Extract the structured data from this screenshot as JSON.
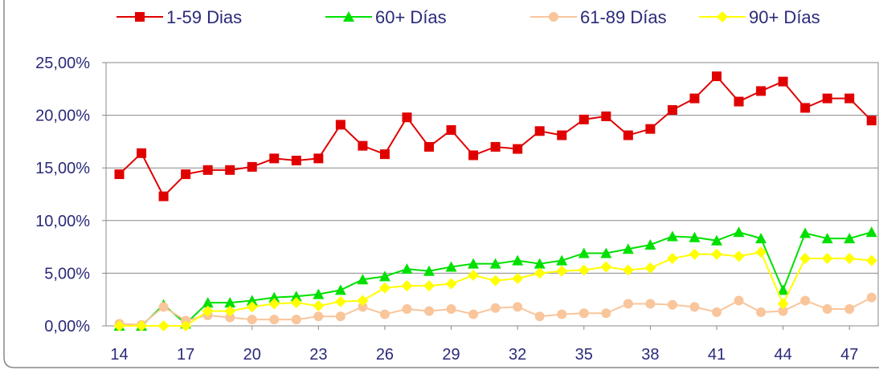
{
  "chart_data": {
    "type": "line",
    "x": [
      14,
      15,
      16,
      17,
      18,
      19,
      20,
      21,
      22,
      23,
      24,
      25,
      26,
      27,
      28,
      29,
      30,
      31,
      32,
      33,
      34,
      35,
      36,
      37,
      38,
      39,
      40,
      41,
      42,
      43,
      44,
      45,
      46,
      47,
      48
    ],
    "xlim": [
      13.4,
      48.3
    ],
    "xticks": [
      14,
      17,
      20,
      23,
      26,
      29,
      32,
      35,
      38,
      41,
      44,
      47
    ],
    "ylim": [
      0,
      25
    ],
    "yticks": [
      {
        "value": 0,
        "label": "0,00%"
      },
      {
        "value": 5,
        "label": "5,00%"
      },
      {
        "value": 10,
        "label": "10,00%"
      },
      {
        "value": 15,
        "label": "15,00%"
      },
      {
        "value": 20,
        "label": "20,00%"
      },
      {
        "value": 25,
        "label": "25,00%"
      }
    ],
    "grid": true,
    "legend": "top",
    "series": [
      {
        "name": "1-59 Dias",
        "color": "#e00000",
        "marker": "square",
        "values": [
          14.4,
          16.4,
          12.3,
          14.4,
          14.8,
          14.8,
          15.1,
          15.9,
          15.7,
          15.9,
          19.1,
          17.1,
          16.3,
          19.8,
          17.0,
          18.6,
          16.2,
          17.0,
          16.8,
          18.5,
          18.1,
          19.6,
          19.9,
          18.1,
          18.7,
          20.5,
          21.6,
          23.7,
          21.3,
          22.3,
          23.2,
          20.7,
          21.6,
          21.6,
          19.5
        ]
      },
      {
        "name": "60+ Días",
        "color": "#00e000",
        "marker": "triangle",
        "values": [
          0,
          0,
          2.0,
          0.2,
          2.2,
          2.2,
          2.4,
          2.7,
          2.8,
          3.0,
          3.4,
          4.4,
          4.7,
          5.4,
          5.2,
          5.6,
          5.9,
          5.9,
          6.2,
          5.9,
          6.2,
          6.9,
          6.9,
          7.3,
          7.7,
          8.5,
          8.4,
          8.1,
          8.9,
          8.3,
          3.4,
          8.8,
          8.3,
          8.3,
          8.9
        ]
      },
      {
        "name": "61-89 Días",
        "color": "#f9c59b",
        "marker": "circle",
        "values": [
          0.2,
          0.1,
          1.8,
          0.5,
          1.0,
          0.8,
          0.6,
          0.6,
          0.6,
          0.9,
          0.9,
          1.8,
          1.1,
          1.6,
          1.4,
          1.6,
          1.1,
          1.7,
          1.8,
          0.9,
          1.1,
          1.2,
          1.2,
          2.1,
          2.1,
          2.0,
          1.8,
          1.3,
          2.4,
          1.3,
          1.4,
          2.4,
          1.6,
          1.6,
          2.7
        ]
      },
      {
        "name": "90+ Días",
        "color": "#ffff00",
        "marker": "diamond",
        "values": [
          0,
          0,
          0,
          0,
          1.4,
          1.4,
          1.8,
          2.1,
          2.2,
          1.9,
          2.3,
          2.4,
          3.6,
          3.8,
          3.8,
          4.0,
          4.8,
          4.3,
          4.5,
          5.0,
          5.2,
          5.3,
          5.6,
          5.3,
          5.5,
          6.4,
          6.8,
          6.8,
          6.6,
          7.0,
          2.1,
          6.4,
          6.4,
          6.4,
          6.2
        ]
      }
    ]
  }
}
